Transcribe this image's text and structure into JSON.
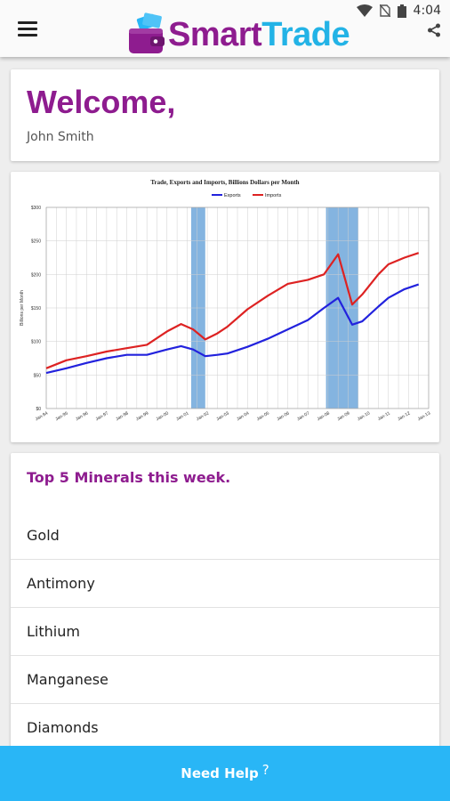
{
  "status_bar": {
    "time": "4:04"
  },
  "app_bar": {
    "logo_part1": "Smart",
    "logo_part2": "Trade"
  },
  "welcome": {
    "title": "Welcome,",
    "user_name": "John Smith"
  },
  "chart_data": {
    "type": "line",
    "title": "Trade, Exports and Imports, Billions Dollars per Month",
    "ylabel": "Billions per Month",
    "xlabel": "",
    "ylim": [
      0,
      300
    ],
    "y_ticks": [
      "$0",
      "$50",
      "$100",
      "$150",
      "$200",
      "$250",
      "$300"
    ],
    "x_ticks": [
      "Jan-94",
      "Jan-95",
      "Jan-96",
      "Jan-97",
      "Jan-98",
      "Jan-99",
      "Jan-00",
      "Jan-01",
      "Jan-02",
      "Jan-03",
      "Jan-04",
      "Jan-05",
      "Jan-06",
      "Jan-07",
      "Jan-08",
      "Jan-09",
      "Jan-10",
      "Jan-11",
      "Jan-12",
      "Jan-13"
    ],
    "grid": true,
    "legend_position": "top-center",
    "recession_bands": [
      [
        2001.2,
        2001.9
      ],
      [
        2007.9,
        2009.5
      ]
    ],
    "series": [
      {
        "name": "Exports",
        "color": "#2222dd",
        "x": [
          1994,
          1995,
          1996,
          1997,
          1998,
          1999,
          2000,
          2000.7,
          2001.3,
          2001.9,
          2002.5,
          2003,
          2004,
          2005,
          2006,
          2007,
          2007.8,
          2008.5,
          2009.2,
          2009.7,
          2010.5,
          2011,
          2011.8,
          2012.5
        ],
        "values": [
          53,
          60,
          68,
          75,
          80,
          80,
          88,
          93,
          88,
          78,
          80,
          82,
          92,
          104,
          118,
          132,
          150,
          165,
          125,
          130,
          152,
          165,
          178,
          185
        ]
      },
      {
        "name": "Imports",
        "color": "#dd2222",
        "x": [
          1994,
          1995,
          1996,
          1997,
          1998,
          1999,
          2000,
          2000.7,
          2001.3,
          2001.9,
          2002.5,
          2003,
          2004,
          2005,
          2006,
          2007,
          2007.8,
          2008.5,
          2009.2,
          2009.7,
          2010.5,
          2011,
          2011.8,
          2012.5
        ],
        "values": [
          60,
          72,
          78,
          85,
          90,
          95,
          115,
          126,
          118,
          103,
          112,
          122,
          148,
          168,
          186,
          192,
          200,
          230,
          155,
          170,
          200,
          215,
          225,
          232
        ]
      }
    ]
  },
  "minerals": {
    "title": "Top 5 Minerals this week.",
    "items": [
      "Gold",
      "Antimony",
      "Lithium",
      "Manganese",
      "Diamonds"
    ]
  },
  "help": {
    "label": "Need Help",
    "suffix": "?"
  }
}
